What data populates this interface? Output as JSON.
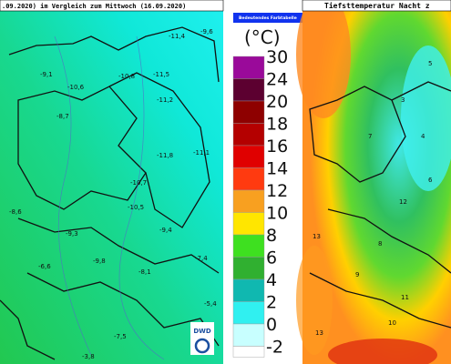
{
  "left_map": {
    "title": ".09.2020) im Vergleich zum Mittwoch (16.09.2020)",
    "values": [
      "-11,4",
      "-9,6",
      "-11,5",
      "-10,8",
      "-10,6",
      "-9,1",
      "-8,7",
      "-11,2",
      "-11,8",
      "-11,1",
      "-10,7",
      "-9,3",
      "-9,8",
      "-8,1",
      "-7,4",
      "-6,6",
      "-7,5",
      "-5,4",
      "-3,8",
      "-8,6",
      "-10,5",
      "-9,4"
    ]
  },
  "legend": {
    "header": "Bedeutendes Farbtabelle",
    "unit": "(°C)",
    "labels": [
      "30",
      "24",
      "20",
      "18",
      "16",
      "14",
      "12",
      "10",
      "8",
      "6",
      "4",
      "2",
      "0",
      "-2"
    ]
  },
  "right_map": {
    "title": "Tiefsttemperatur Nacht z",
    "values": [
      "13",
      "11",
      "10",
      "12",
      "9",
      "4",
      "3",
      "7",
      "5",
      "13",
      "8",
      "6"
    ]
  },
  "logo": "DWD"
}
